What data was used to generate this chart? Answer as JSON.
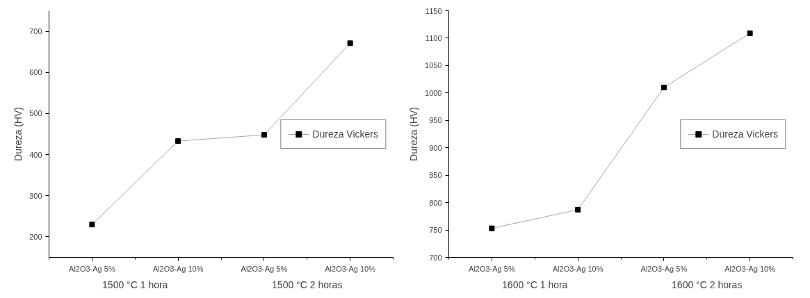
{
  "chart_data": [
    {
      "type": "line",
      "ylabel": "Dureza (HV)",
      "categories": [
        "Al2O3-Ag 5%",
        "Al2O3-Ag 10%",
        "Al2O3-Ag 5%",
        "Al2O3-Ag 10%"
      ],
      "series": [
        {
          "name": "Dureza Vickers",
          "color": "#000000",
          "values": [
            230,
            433,
            448,
            671
          ]
        }
      ],
      "ylim": [
        150,
        750
      ],
      "yticks": [
        200,
        300,
        400,
        500,
        600,
        700
      ],
      "marker": "square",
      "legend": "right",
      "grid": false,
      "annotations": [
        "1500 °C 1 hora",
        "1500 °C 2 horas"
      ]
    },
    {
      "type": "line",
      "ylabel": "Dureza (HV)",
      "categories": [
        "Al2O3-Ag 5%",
        "Al2O3-Ag 10%",
        "Al2O3-Ag 5%",
        "Al2O3-Ag 10%"
      ],
      "series": [
        {
          "name": "Dureza Vickers",
          "color": "#000000",
          "values": [
            753,
            787,
            1010,
            1109
          ]
        }
      ],
      "ylim": [
        700,
        1150
      ],
      "yticks": [
        700,
        750,
        800,
        850,
        900,
        950,
        1000,
        1050,
        1100,
        1150
      ],
      "marker": "square",
      "legend": "right",
      "grid": false,
      "annotations": [
        "1600 °C 1 hora",
        "1600 °C 2 horas"
      ]
    }
  ]
}
